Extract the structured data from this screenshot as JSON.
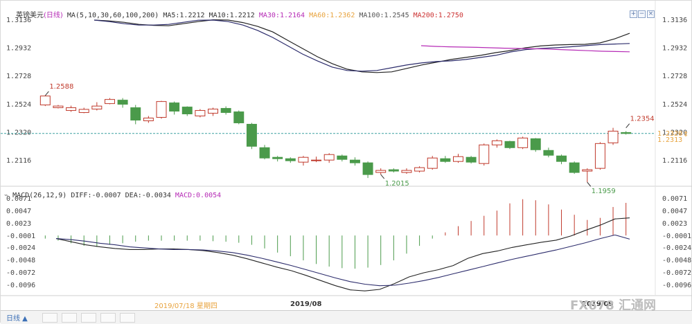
{
  "header": {
    "symbol": "英镑美元",
    "period": "(日线)",
    "ma_label": "MA(5,10,30,60,100,200)",
    "ma_values": [
      {
        "text": "MA5:1.2212",
        "color": "#333333"
      },
      {
        "text": "MA10:1.2212",
        "color": "#333333"
      },
      {
        "text": "MA30:1.2164",
        "color": "#b62bb6"
      },
      {
        "text": "MA60:1.2362",
        "color": "#e8a33d"
      },
      {
        "text": "MA100:1.2545",
        "color": "#555555"
      },
      {
        "text": "MA200:1.2750",
        "color": "#cc3333"
      }
    ]
  },
  "macd_header": {
    "label": "MACD(26,12,9)",
    "diff": "DIFF:-0.0007",
    "dea": "DEA:-0.0034",
    "macd": "MACD:0.0054",
    "macd_color": "#b62bb6"
  },
  "bottom": {
    "period_button": "日线 ▲",
    "cursor_date": "2019/07/18 星期四",
    "watermark": "FX678 汇通网",
    "icons": [
      "zoom-in-icon",
      "zoom-out-icon",
      "close-icon"
    ]
  },
  "colors": {
    "up": "#c0392b",
    "down": "#4a9a4a",
    "ma_black": "#222222",
    "ma_navy": "#2b2b6b",
    "ma_purple": "#b62bb6",
    "ref_line": "#3aa0a0",
    "price_tag": "#e8a33d"
  },
  "chart_data": [
    {
      "type": "candlestick",
      "title": "",
      "yticks": [
        "1.3136",
        "1.2932",
        "1.2728",
        "1.2524",
        "1.2320",
        "1.2116"
      ],
      "ylim": [
        1.1959,
        1.3136
      ],
      "xticks": [
        "2019/08",
        "2019/09"
      ],
      "annotations": [
        {
          "text": "1.2588",
          "index": 0,
          "value": 1.2588,
          "color": "#c0392b"
        },
        {
          "text": "1.2015",
          "index": 26,
          "value": 1.2015,
          "color": "#4a9a4a"
        },
        {
          "text": "1.2354",
          "index": 45,
          "value": 1.2354,
          "color": "#c0392b"
        },
        {
          "text": "1.1959",
          "index": 42,
          "value": 1.1959,
          "color": "#4a9a4a"
        }
      ],
      "right_labels": [
        {
          "text": "1.2320",
          "color": "#e8a33d"
        },
        {
          "text": "1.2313",
          "color": "#e8a33d"
        }
      ],
      "reference_line": 1.2313,
      "ohlc": [
        [
          1.252,
          1.2588,
          1.2512,
          1.2585
        ],
        [
          1.25,
          1.252,
          1.2495,
          1.2512
        ],
        [
          1.248,
          1.2515,
          1.247,
          1.25
        ],
        [
          1.2465,
          1.25,
          1.246,
          1.2488
        ],
        [
          1.249,
          1.254,
          1.248,
          1.2512
        ],
        [
          1.253,
          1.257,
          1.2525,
          1.256
        ],
        [
          1.2555,
          1.257,
          1.25,
          1.2525
        ],
        [
          1.25,
          1.252,
          1.238,
          1.241
        ],
        [
          1.2405,
          1.244,
          1.239,
          1.2425
        ],
        [
          1.243,
          1.255,
          1.242,
          1.2545
        ],
        [
          1.2535,
          1.2545,
          1.245,
          1.2475
        ],
        [
          1.2505,
          1.251,
          1.244,
          1.2455
        ],
        [
          1.244,
          1.249,
          1.243,
          1.248
        ],
        [
          1.246,
          1.25,
          1.244,
          1.249
        ],
        [
          1.2495,
          1.251,
          1.245,
          1.2465
        ],
        [
          1.247,
          1.248,
          1.238,
          1.239
        ],
        [
          1.238,
          1.239,
          1.22,
          1.222
        ],
        [
          1.221,
          1.223,
          1.2125,
          1.2135
        ],
        [
          1.214,
          1.215,
          1.211,
          1.213
        ],
        [
          1.213,
          1.214,
          1.21,
          1.2115
        ],
        [
          1.2105,
          1.215,
          1.208,
          1.214
        ],
        [
          1.2115,
          1.2145,
          1.2105,
          1.212
        ],
        [
          1.212,
          1.217,
          1.21,
          1.216
        ],
        [
          1.215,
          1.216,
          1.211,
          1.2125
        ],
        [
          1.212,
          1.214,
          1.208,
          1.21
        ],
        [
          1.21,
          1.211,
          1.199,
          1.2015
        ],
        [
          1.203,
          1.206,
          1.2015,
          1.2045
        ],
        [
          1.205,
          1.206,
          1.203,
          1.204
        ],
        [
          1.203,
          1.206,
          1.202,
          1.2045
        ],
        [
          1.204,
          1.2075,
          1.203,
          1.2065
        ],
        [
          1.206,
          1.215,
          1.205,
          1.2135
        ],
        [
          1.213,
          1.215,
          1.21,
          1.211
        ],
        [
          1.211,
          1.2165,
          1.21,
          1.2145
        ],
        [
          1.214,
          1.215,
          1.2095,
          1.2105
        ],
        [
          1.2095,
          1.224,
          1.208,
          1.223
        ],
        [
          1.223,
          1.227,
          1.221,
          1.226
        ],
        [
          1.2255,
          1.226,
          1.22,
          1.221
        ],
        [
          1.221,
          1.229,
          1.22,
          1.228
        ],
        [
          1.2275,
          1.228,
          1.218,
          1.2195
        ],
        [
          1.219,
          1.221,
          1.214,
          1.2155
        ],
        [
          1.215,
          1.216,
          1.209,
          1.211
        ],
        [
          1.21,
          1.211,
          1.202,
          1.203
        ],
        [
          1.204,
          1.206,
          1.1959,
          1.205
        ],
        [
          1.206,
          1.225,
          1.205,
          1.224
        ],
        [
          1.2245,
          1.2354,
          1.223,
          1.233
        ],
        [
          1.232,
          1.233,
          1.2305,
          1.2313
        ]
      ],
      "series": [
        {
          "name": "MA5",
          "color": "#222222",
          "values": [
            1.3136,
            1.313,
            1.312,
            1.3105,
            1.3098,
            1.3095,
            1.311,
            1.3125,
            1.3138,
            1.3136,
            1.3118,
            1.309,
            1.305,
            1.299,
            1.293,
            1.287,
            1.282,
            1.278,
            1.276,
            1.2755,
            1.276,
            1.2785,
            1.281,
            1.283,
            1.285,
            1.2865,
            1.288,
            1.29,
            1.2915,
            1.2935,
            1.2948,
            1.2955,
            1.2958,
            1.296,
            1.297,
            1.3,
            1.304
          ]
        },
        {
          "name": "MA10",
          "color": "#2b2b6b",
          "values": [
            1.3136,
            1.3125,
            1.311,
            1.31,
            1.31,
            1.3105,
            1.312,
            1.3135,
            1.3136,
            1.3125,
            1.31,
            1.306,
            1.301,
            1.295,
            1.289,
            1.284,
            1.2795,
            1.277,
            1.2765,
            1.277,
            1.279,
            1.281,
            1.2825,
            1.2835,
            1.284,
            1.285,
            1.2865,
            1.288,
            1.2905,
            1.2922,
            1.293,
            1.2935,
            1.2942,
            1.295,
            1.2958,
            1.2962,
            1.2966
          ]
        },
        {
          "name": "MA30",
          "color": "#b62bb6",
          "values": [
            1.295,
            1.2945,
            1.2942,
            1.294,
            1.2938,
            1.2935,
            1.2932,
            1.293,
            1.2928,
            1.2926,
            1.2922,
            1.2918,
            1.2914,
            1.291,
            1.2908,
            1.2906
          ]
        }
      ]
    },
    {
      "type": "bar",
      "title": "MACD(26,12,9)",
      "yticks": [
        "0.0071",
        "0.0047",
        "0.0023",
        "-0.0001",
        "-0.0024",
        "-0.0048",
        "-0.0072",
        "-0.0096"
      ],
      "ylim": [
        -0.0108,
        0.0071
      ],
      "histogram": [
        -0.0006,
        -0.001,
        -0.0015,
        -0.002,
        -0.0022,
        -0.0018,
        -0.0015,
        -0.0012,
        -0.001,
        -0.001,
        -0.001,
        -0.001,
        -0.001,
        -0.0011,
        -0.0012,
        -0.0014,
        -0.0018,
        -0.0025,
        -0.0033,
        -0.004,
        -0.0048,
        -0.0055,
        -0.006,
        -0.0063,
        -0.0064,
        -0.0062,
        -0.0057,
        -0.0048,
        -0.0035,
        -0.002,
        -0.0006,
        0.0006,
        0.0018,
        0.0028,
        0.0038,
        0.0048,
        0.0062,
        0.007,
        0.0068,
        0.006,
        0.005,
        0.004,
        0.003,
        0.0034,
        0.0055,
        0.0063
      ],
      "series": [
        {
          "name": "DIFF",
          "color": "#222222",
          "values": [
            -0.0006,
            -0.0012,
            -0.0018,
            -0.0022,
            -0.0025,
            -0.0027,
            -0.0027,
            -0.0026,
            -0.0026,
            -0.0027,
            -0.0029,
            -0.0033,
            -0.0038,
            -0.0045,
            -0.0053,
            -0.0061,
            -0.0068,
            -0.0077,
            -0.0087,
            -0.0097,
            -0.0105,
            -0.0107,
            -0.0104,
            -0.0093,
            -0.008,
            -0.0072,
            -0.0066,
            -0.0058,
            -0.0044,
            -0.0035,
            -0.003,
            -0.0023,
            -0.0018,
            -0.0013,
            -0.0009,
            -0.0001,
            0.001,
            0.002,
            0.0032,
            0.0034
          ]
        },
        {
          "name": "DEA",
          "color": "#2b2b6b",
          "values": [
            -0.0006,
            -0.0008,
            -0.0011,
            -0.0015,
            -0.0018,
            -0.0022,
            -0.0024,
            -0.0026,
            -0.0027,
            -0.0027,
            -0.0028,
            -0.003,
            -0.0033,
            -0.0038,
            -0.0044,
            -0.0051,
            -0.0058,
            -0.0066,
            -0.0074,
            -0.0082,
            -0.0089,
            -0.0094,
            -0.0097,
            -0.0096,
            -0.0092,
            -0.0087,
            -0.0081,
            -0.0074,
            -0.0067,
            -0.006,
            -0.0053,
            -0.0046,
            -0.004,
            -0.0034,
            -0.0028,
            -0.0021,
            -0.0014,
            -0.0006,
            0.0001,
            -0.0007
          ]
        }
      ]
    }
  ]
}
